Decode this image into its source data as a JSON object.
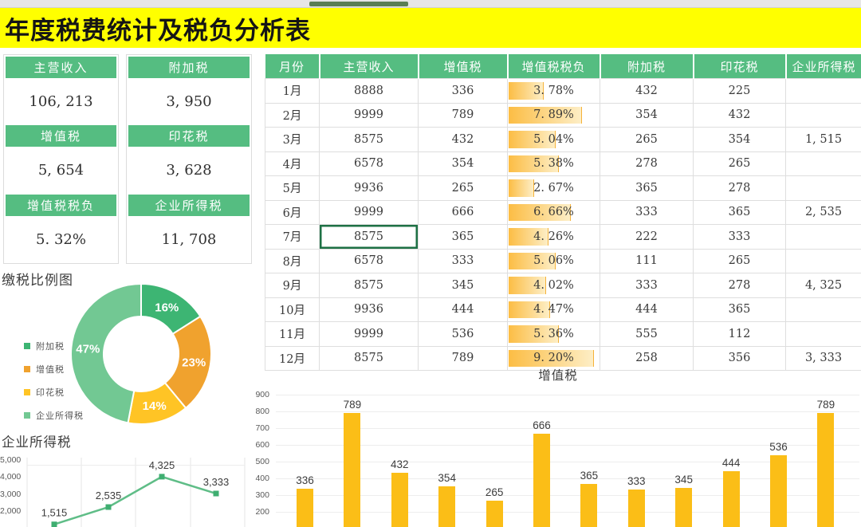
{
  "title": "年度税费统计及税负分析表",
  "colors": {
    "banner_bg": "#ffff00",
    "header_green": "#55bd81",
    "selection_green": "#1e7145",
    "bar_yellow": "#fbbe17",
    "line_green": "#5fbd87",
    "marker_green": "#3fae71"
  },
  "summary_cards": {
    "columns": [
      {
        "items": [
          {
            "label": "主营收入",
            "value": "106, 213"
          },
          {
            "label": "增值税",
            "value": "5, 654"
          },
          {
            "label": "增值税税负",
            "value": "5. 32%"
          }
        ]
      },
      {
        "items": [
          {
            "label": "附加税",
            "value": "3, 950"
          },
          {
            "label": "印花税",
            "value": "3, 628"
          },
          {
            "label": "企业所得税",
            "value": "11, 708"
          }
        ]
      }
    ]
  },
  "table": {
    "headers": [
      "月份",
      "主营收入",
      "增值税",
      "增值税税负",
      "附加税",
      "印花税",
      "企业所得税"
    ],
    "rows": [
      [
        "1月",
        "8888",
        "336",
        "3. 78%",
        "432",
        "225",
        ""
      ],
      [
        "2月",
        "9999",
        "789",
        "7. 89%",
        "354",
        "432",
        ""
      ],
      [
        "3月",
        "8575",
        "432",
        "5. 04%",
        "265",
        "354",
        "1, 515"
      ],
      [
        "4月",
        "6578",
        "354",
        "5. 38%",
        "278",
        "265",
        ""
      ],
      [
        "5月",
        "9936",
        "265",
        "2. 67%",
        "365",
        "278",
        ""
      ],
      [
        "6月",
        "9999",
        "666",
        "6. 66%",
        "333",
        "365",
        "2, 535"
      ],
      [
        "7月",
        "8575",
        "365",
        "4. 26%",
        "222",
        "333",
        ""
      ],
      [
        "8月",
        "6578",
        "333",
        "5. 06%",
        "111",
        "265",
        ""
      ],
      [
        "9月",
        "8575",
        "345",
        "4. 02%",
        "333",
        "278",
        "4, 325"
      ],
      [
        "10月",
        "9936",
        "444",
        "4. 47%",
        "444",
        "365",
        ""
      ],
      [
        "11月",
        "9999",
        "536",
        "5. 36%",
        "555",
        "112",
        ""
      ],
      [
        "12月",
        "8575",
        "789",
        "9. 20%",
        "258",
        "356",
        "3, 333"
      ]
    ],
    "burden_values": [
      3.78,
      7.89,
      5.04,
      5.38,
      2.67,
      6.66,
      4.26,
      5.06,
      4.02,
      4.47,
      5.36,
      9.2
    ],
    "selected_cell": {
      "row": 6,
      "col": 1
    }
  },
  "chart_data": [
    {
      "type": "pie",
      "title": "缴税比例图",
      "labels": [
        "附加税",
        "增值税",
        "印花税",
        "企业所得税"
      ],
      "values": [
        16,
        23,
        14,
        47
      ],
      "value_labels": [
        "16%",
        "23%",
        "14%",
        "47%"
      ],
      "colors": [
        "#3db573",
        "#f0a22e",
        "#ffc425",
        "#72c893"
      ],
      "donut": true,
      "legend_position": "left"
    },
    {
      "type": "line",
      "title": "企业所得税",
      "values": [
        1515,
        2535,
        4325,
        3333
      ],
      "labels": [
        "1,515",
        "2,535",
        "4,325",
        "3,333"
      ],
      "yticks": [
        "5,000",
        "4,000",
        "3,000",
        "2,000"
      ],
      "ymax": 5000,
      "grid": "vertical"
    },
    {
      "type": "bar",
      "title": "增值税",
      "values": [
        336,
        789,
        432,
        354,
        265,
        666,
        365,
        333,
        345,
        444,
        536,
        789
      ],
      "yticks": [
        "900",
        "800",
        "700",
        "600",
        "500",
        "400",
        "300",
        "200"
      ],
      "ytop": 900,
      "grid": "horizontal"
    }
  ]
}
